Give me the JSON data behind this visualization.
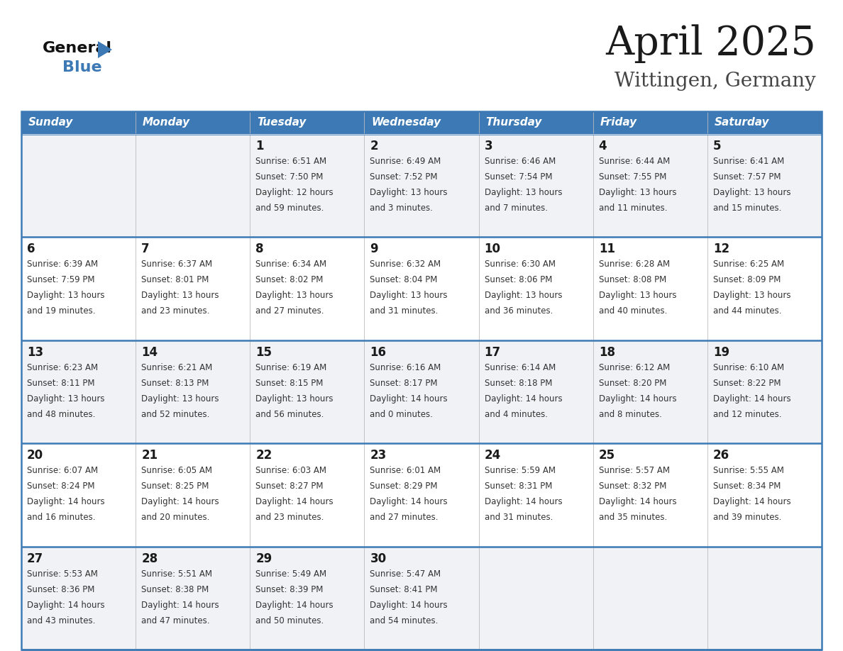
{
  "title": "April 2025",
  "subtitle": "Wittingen, Germany",
  "header_color": "#3d7ab5",
  "header_text_color": "#ffffff",
  "border_color": "#3d7ab5",
  "row_bg_colors": [
    "#f0f2f5",
    "#ffffff"
  ],
  "day_names": [
    "Sunday",
    "Monday",
    "Tuesday",
    "Wednesday",
    "Thursday",
    "Friday",
    "Saturday"
  ],
  "days": [
    {
      "day": 1,
      "col": 2,
      "row": 0,
      "sunrise": "6:51 AM",
      "sunset": "7:50 PM",
      "daylight_h": "12 hours",
      "daylight_m": "and 59 minutes."
    },
    {
      "day": 2,
      "col": 3,
      "row": 0,
      "sunrise": "6:49 AM",
      "sunset": "7:52 PM",
      "daylight_h": "13 hours",
      "daylight_m": "and 3 minutes."
    },
    {
      "day": 3,
      "col": 4,
      "row": 0,
      "sunrise": "6:46 AM",
      "sunset": "7:54 PM",
      "daylight_h": "13 hours",
      "daylight_m": "and 7 minutes."
    },
    {
      "day": 4,
      "col": 5,
      "row": 0,
      "sunrise": "6:44 AM",
      "sunset": "7:55 PM",
      "daylight_h": "13 hours",
      "daylight_m": "and 11 minutes."
    },
    {
      "day": 5,
      "col": 6,
      "row": 0,
      "sunrise": "6:41 AM",
      "sunset": "7:57 PM",
      "daylight_h": "13 hours",
      "daylight_m": "and 15 minutes."
    },
    {
      "day": 6,
      "col": 0,
      "row": 1,
      "sunrise": "6:39 AM",
      "sunset": "7:59 PM",
      "daylight_h": "13 hours",
      "daylight_m": "and 19 minutes."
    },
    {
      "day": 7,
      "col": 1,
      "row": 1,
      "sunrise": "6:37 AM",
      "sunset": "8:01 PM",
      "daylight_h": "13 hours",
      "daylight_m": "and 23 minutes."
    },
    {
      "day": 8,
      "col": 2,
      "row": 1,
      "sunrise": "6:34 AM",
      "sunset": "8:02 PM",
      "daylight_h": "13 hours",
      "daylight_m": "and 27 minutes."
    },
    {
      "day": 9,
      "col": 3,
      "row": 1,
      "sunrise": "6:32 AM",
      "sunset": "8:04 PM",
      "daylight_h": "13 hours",
      "daylight_m": "and 31 minutes."
    },
    {
      "day": 10,
      "col": 4,
      "row": 1,
      "sunrise": "6:30 AM",
      "sunset": "8:06 PM",
      "daylight_h": "13 hours",
      "daylight_m": "and 36 minutes."
    },
    {
      "day": 11,
      "col": 5,
      "row": 1,
      "sunrise": "6:28 AM",
      "sunset": "8:08 PM",
      "daylight_h": "13 hours",
      "daylight_m": "and 40 minutes."
    },
    {
      "day": 12,
      "col": 6,
      "row": 1,
      "sunrise": "6:25 AM",
      "sunset": "8:09 PM",
      "daylight_h": "13 hours",
      "daylight_m": "and 44 minutes."
    },
    {
      "day": 13,
      "col": 0,
      "row": 2,
      "sunrise": "6:23 AM",
      "sunset": "8:11 PM",
      "daylight_h": "13 hours",
      "daylight_m": "and 48 minutes."
    },
    {
      "day": 14,
      "col": 1,
      "row": 2,
      "sunrise": "6:21 AM",
      "sunset": "8:13 PM",
      "daylight_h": "13 hours",
      "daylight_m": "and 52 minutes."
    },
    {
      "day": 15,
      "col": 2,
      "row": 2,
      "sunrise": "6:19 AM",
      "sunset": "8:15 PM",
      "daylight_h": "13 hours",
      "daylight_m": "and 56 minutes."
    },
    {
      "day": 16,
      "col": 3,
      "row": 2,
      "sunrise": "6:16 AM",
      "sunset": "8:17 PM",
      "daylight_h": "14 hours",
      "daylight_m": "and 0 minutes."
    },
    {
      "day": 17,
      "col": 4,
      "row": 2,
      "sunrise": "6:14 AM",
      "sunset": "8:18 PM",
      "daylight_h": "14 hours",
      "daylight_m": "and 4 minutes."
    },
    {
      "day": 18,
      "col": 5,
      "row": 2,
      "sunrise": "6:12 AM",
      "sunset": "8:20 PM",
      "daylight_h": "14 hours",
      "daylight_m": "and 8 minutes."
    },
    {
      "day": 19,
      "col": 6,
      "row": 2,
      "sunrise": "6:10 AM",
      "sunset": "8:22 PM",
      "daylight_h": "14 hours",
      "daylight_m": "and 12 minutes."
    },
    {
      "day": 20,
      "col": 0,
      "row": 3,
      "sunrise": "6:07 AM",
      "sunset": "8:24 PM",
      "daylight_h": "14 hours",
      "daylight_m": "and 16 minutes."
    },
    {
      "day": 21,
      "col": 1,
      "row": 3,
      "sunrise": "6:05 AM",
      "sunset": "8:25 PM",
      "daylight_h": "14 hours",
      "daylight_m": "and 20 minutes."
    },
    {
      "day": 22,
      "col": 2,
      "row": 3,
      "sunrise": "6:03 AM",
      "sunset": "8:27 PM",
      "daylight_h": "14 hours",
      "daylight_m": "and 23 minutes."
    },
    {
      "day": 23,
      "col": 3,
      "row": 3,
      "sunrise": "6:01 AM",
      "sunset": "8:29 PM",
      "daylight_h": "14 hours",
      "daylight_m": "and 27 minutes."
    },
    {
      "day": 24,
      "col": 4,
      "row": 3,
      "sunrise": "5:59 AM",
      "sunset": "8:31 PM",
      "daylight_h": "14 hours",
      "daylight_m": "and 31 minutes."
    },
    {
      "day": 25,
      "col": 5,
      "row": 3,
      "sunrise": "5:57 AM",
      "sunset": "8:32 PM",
      "daylight_h": "14 hours",
      "daylight_m": "and 35 minutes."
    },
    {
      "day": 26,
      "col": 6,
      "row": 3,
      "sunrise": "5:55 AM",
      "sunset": "8:34 PM",
      "daylight_h": "14 hours",
      "daylight_m": "and 39 minutes."
    },
    {
      "day": 27,
      "col": 0,
      "row": 4,
      "sunrise": "5:53 AM",
      "sunset": "8:36 PM",
      "daylight_h": "14 hours",
      "daylight_m": "and 43 minutes."
    },
    {
      "day": 28,
      "col": 1,
      "row": 4,
      "sunrise": "5:51 AM",
      "sunset": "8:38 PM",
      "daylight_h": "14 hours",
      "daylight_m": "and 47 minutes."
    },
    {
      "day": 29,
      "col": 2,
      "row": 4,
      "sunrise": "5:49 AM",
      "sunset": "8:39 PM",
      "daylight_h": "14 hours",
      "daylight_m": "and 50 minutes."
    },
    {
      "day": 30,
      "col": 3,
      "row": 4,
      "sunrise": "5:47 AM",
      "sunset": "8:41 PM",
      "daylight_h": "14 hours",
      "daylight_m": "and 54 minutes."
    }
  ],
  "logo_general_color": "#111111",
  "logo_blue_color": "#3d7ab5",
  "logo_triangle_color": "#3d7ab5"
}
